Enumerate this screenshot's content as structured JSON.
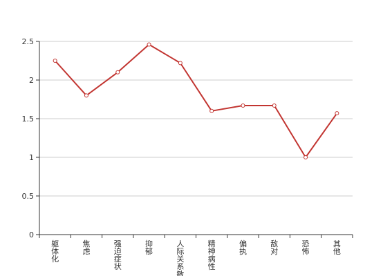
{
  "chart_data": {
    "type": "line",
    "categories": [
      "躯体化",
      "焦虑",
      "强迫症状",
      "抑郁",
      "人际关系敏感",
      "精神病性",
      "偏执",
      "敌对",
      "恐怖",
      "其他"
    ],
    "series": [
      {
        "values": [
          2.25,
          1.8,
          2.1,
          2.46,
          2.22,
          1.6,
          1.67,
          1.67,
          1.0,
          1.57
        ]
      }
    ],
    "ylim": [
      0,
      2.5
    ],
    "yticks": [
      "0",
      "0.5",
      "1",
      "1.5",
      "2",
      "2.5"
    ],
    "grid": true,
    "line_color": "#c23531",
    "point_fill": "#ffffff",
    "grid_color": "#cccccc",
    "axis_color": "#333333"
  }
}
